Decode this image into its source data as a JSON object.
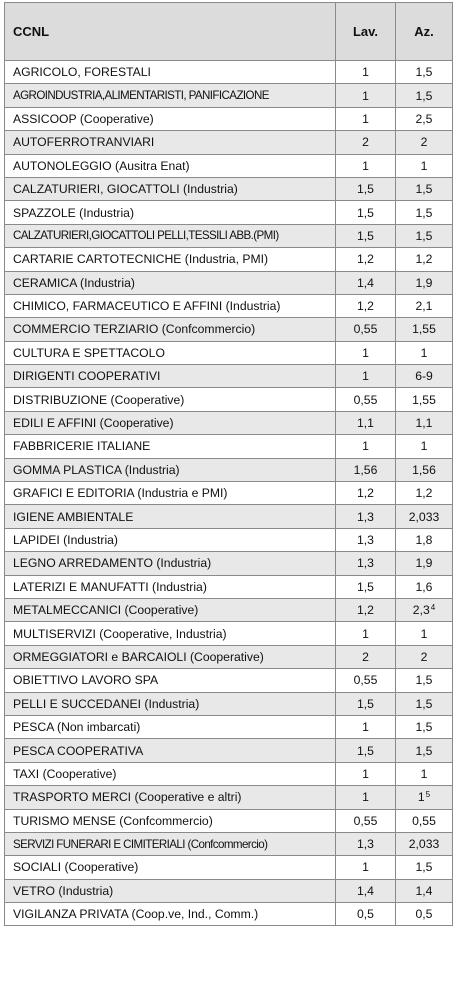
{
  "headers": {
    "ccnl": "CCNL",
    "lav": "Lav.",
    "az": "Az."
  },
  "rows": [
    {
      "name": "AGRICOLO, FORESTALI",
      "lav": "1",
      "az": "1,5",
      "alt": false,
      "cond": false
    },
    {
      "name": "AGROINDUSTRIA,ALIMENTARISTI, PANIFICAZIONE",
      "lav": "1",
      "az": "1,5",
      "alt": true,
      "cond": true
    },
    {
      "name": "ASSICOOP (Cooperative)",
      "lav": "1",
      "az": "2,5",
      "alt": false,
      "cond": false
    },
    {
      "name": "AUTOFERROTRANVIARI",
      "lav": "2",
      "az": "2",
      "alt": true,
      "cond": false
    },
    {
      "name": "AUTONOLEGGIO (Ausitra Enat)",
      "lav": "1",
      "az": "1",
      "alt": false,
      "cond": false
    },
    {
      "name": "CALZATURIERI, GIOCATTOLI (Industria)",
      "lav": "1,5",
      "az": "1,5",
      "alt": true,
      "cond": false
    },
    {
      "name": "SPAZZOLE (Industria)",
      "lav": "1,5",
      "az": "1,5",
      "alt": false,
      "cond": false
    },
    {
      "name": "CALZATURIERI,GIOCATTOLI PELLI,TESSILI ABB.(PMI)",
      "lav": "1,5",
      "az": "1,5",
      "alt": true,
      "cond": true
    },
    {
      "name": "CARTARIE CARTOTECNICHE (Industria, PMI)",
      "lav": "1,2",
      "az": "1,2",
      "alt": false,
      "cond": false
    },
    {
      "name": "CERAMICA (Industria)",
      "lav": "1,4",
      "az": "1,9",
      "alt": true,
      "cond": false
    },
    {
      "name": "CHIMICO, FARMACEUTICO E AFFINI (Industria)",
      "lav": "1,2",
      "az": "2,1",
      "alt": false,
      "cond": false
    },
    {
      "name": "COMMERCIO TERZIARIO (Confcommercio)",
      "lav": "0,55",
      "az": "1,55",
      "alt": true,
      "cond": false
    },
    {
      "name": "CULTURA E SPETTACOLO",
      "lav": "1",
      "az": "1",
      "alt": false,
      "cond": false
    },
    {
      "name": "DIRIGENTI COOPERATIVI",
      "lav": "1",
      "az": "6-9",
      "alt": true,
      "cond": false
    },
    {
      "name": "DISTRIBUZIONE (Cooperative)",
      "lav": "0,55",
      "az": "1,55",
      "alt": false,
      "cond": false
    },
    {
      "name": "EDILI E AFFINI (Cooperative)",
      "lav": "1,1",
      "az": "1,1",
      "alt": true,
      "cond": false
    },
    {
      "name": "FABBRICERIE ITALIANE",
      "lav": "1",
      "az": "1",
      "alt": false,
      "cond": false
    },
    {
      "name": "GOMMA PLASTICA (Industria)",
      "lav": "1,56",
      "az": "1,56",
      "alt": true,
      "cond": false
    },
    {
      "name": "GRAFICI E EDITORIA (Industria e PMI)",
      "lav": "1,2",
      "az": "1,2",
      "alt": false,
      "cond": false
    },
    {
      "name": "IGIENE AMBIENTALE",
      "lav": "1,3",
      "az": "2,033",
      "alt": true,
      "cond": false
    },
    {
      "name": "LAPIDEI (Industria)",
      "lav": "1,3",
      "az": "1,8",
      "alt": false,
      "cond": false
    },
    {
      "name": "LEGNO ARREDAMENTO (Industria)",
      "lav": "1,3",
      "az": "1,9",
      "alt": true,
      "cond": false
    },
    {
      "name": "LATERIZI E MANUFATTI (Industria)",
      "lav": "1,5",
      "az": "1,6",
      "alt": false,
      "cond": false
    },
    {
      "name": "METALMECCANICI (Cooperative)",
      "lav": "1,2",
      "az": "2,3",
      "sup": "4",
      "alt": true,
      "cond": false
    },
    {
      "name": "MULTISERVIZI (Cooperative, Industria)",
      "lav": "1",
      "az": "1",
      "alt": false,
      "cond": false
    },
    {
      "name": "ORMEGGIATORI e BARCAIOLI (Cooperative)",
      "lav": "2",
      "az": "2",
      "alt": true,
      "cond": false
    },
    {
      "name": "OBIETTIVO LAVORO SPA",
      "lav": "0,55",
      "az": "1,5",
      "alt": false,
      "cond": false
    },
    {
      "name": "PELLI E SUCCEDANEI (Industria)",
      "lav": "1,5",
      "az": "1,5",
      "alt": true,
      "cond": false
    },
    {
      "name": "PESCA (Non imbarcati)",
      "lav": "1",
      "az": "1,5",
      "alt": false,
      "cond": false
    },
    {
      "name": "PESCA COOPERATIVA",
      "lav": "1,5",
      "az": "1,5",
      "alt": true,
      "cond": false
    },
    {
      "name": "TAXI (Cooperative)",
      "lav": "1",
      "az": "1",
      "alt": false,
      "cond": false
    },
    {
      "name": "TRASPORTO MERCI (Cooperative e altri)",
      "lav": "1",
      "az": "1",
      "sup": "5",
      "alt": true,
      "cond": false
    },
    {
      "name": "TURISMO MENSE (Confcommercio)",
      "lav": "0,55",
      "az": "0,55",
      "alt": false,
      "cond": false
    },
    {
      "name": "SERVIZI FUNERARI E CIMITERIALI (Confcommercio)",
      "lav": "1,3",
      "az": "2,033",
      "alt": true,
      "cond": true
    },
    {
      "name": "SOCIALI (Cooperative)",
      "lav": "1",
      "az": "1,5",
      "alt": false,
      "cond": false
    },
    {
      "name": "VETRO (Industria)",
      "lav": "1,4",
      "az": "1,4",
      "alt": true,
      "cond": false
    },
    {
      "name": "VIGILANZA PRIVATA (Coop.ve, Ind., Comm.)",
      "lav": "0,5",
      "az": "0,5",
      "alt": false,
      "cond": false
    }
  ]
}
